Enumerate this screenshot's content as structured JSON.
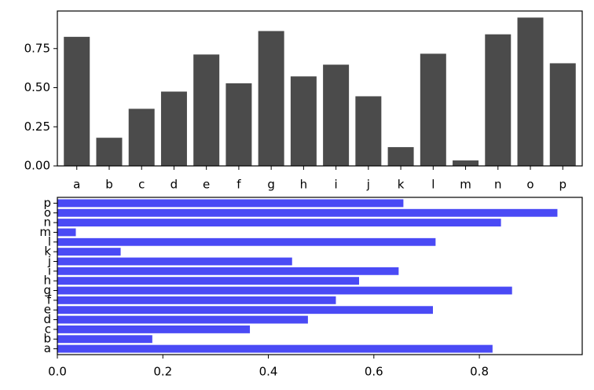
{
  "chart_data": [
    {
      "type": "bar",
      "orientation": "vertical",
      "categories": [
        "a",
        "b",
        "c",
        "d",
        "e",
        "f",
        "g",
        "h",
        "i",
        "j",
        "k",
        "l",
        "m",
        "n",
        "o",
        "p"
      ],
      "values": [
        0.825,
        0.18,
        0.365,
        0.475,
        0.712,
        0.528,
        0.862,
        0.572,
        0.647,
        0.445,
        0.12,
        0.717,
        0.035,
        0.841,
        0.948,
        0.656
      ],
      "ylim": [
        0,
        0.99
      ],
      "yticks": [
        0.0,
        0.25,
        0.5,
        0.75
      ],
      "ytick_labels": [
        "0.00",
        "0.25",
        "0.50",
        "0.75"
      ],
      "bar_color": "#4b4b4b",
      "grid": false,
      "title": "",
      "xlabel": "",
      "ylabel": ""
    },
    {
      "type": "bar",
      "orientation": "horizontal",
      "categories": [
        "a",
        "b",
        "c",
        "d",
        "e",
        "f",
        "g",
        "h",
        "i",
        "j",
        "k",
        "l",
        "m",
        "n",
        "o",
        "p"
      ],
      "values": [
        0.825,
        0.18,
        0.365,
        0.475,
        0.712,
        0.528,
        0.862,
        0.572,
        0.647,
        0.445,
        0.12,
        0.717,
        0.035,
        0.841,
        0.948,
        0.656
      ],
      "xlim": [
        0,
        0.995
      ],
      "xticks": [
        0.0,
        0.2,
        0.4,
        0.6,
        0.8
      ],
      "xtick_labels": [
        "0.0",
        "0.2",
        "0.4",
        "0.6",
        "0.8"
      ],
      "bar_color": "#4a4af5",
      "grid": false,
      "title": "",
      "xlabel": "",
      "ylabel": ""
    }
  ]
}
